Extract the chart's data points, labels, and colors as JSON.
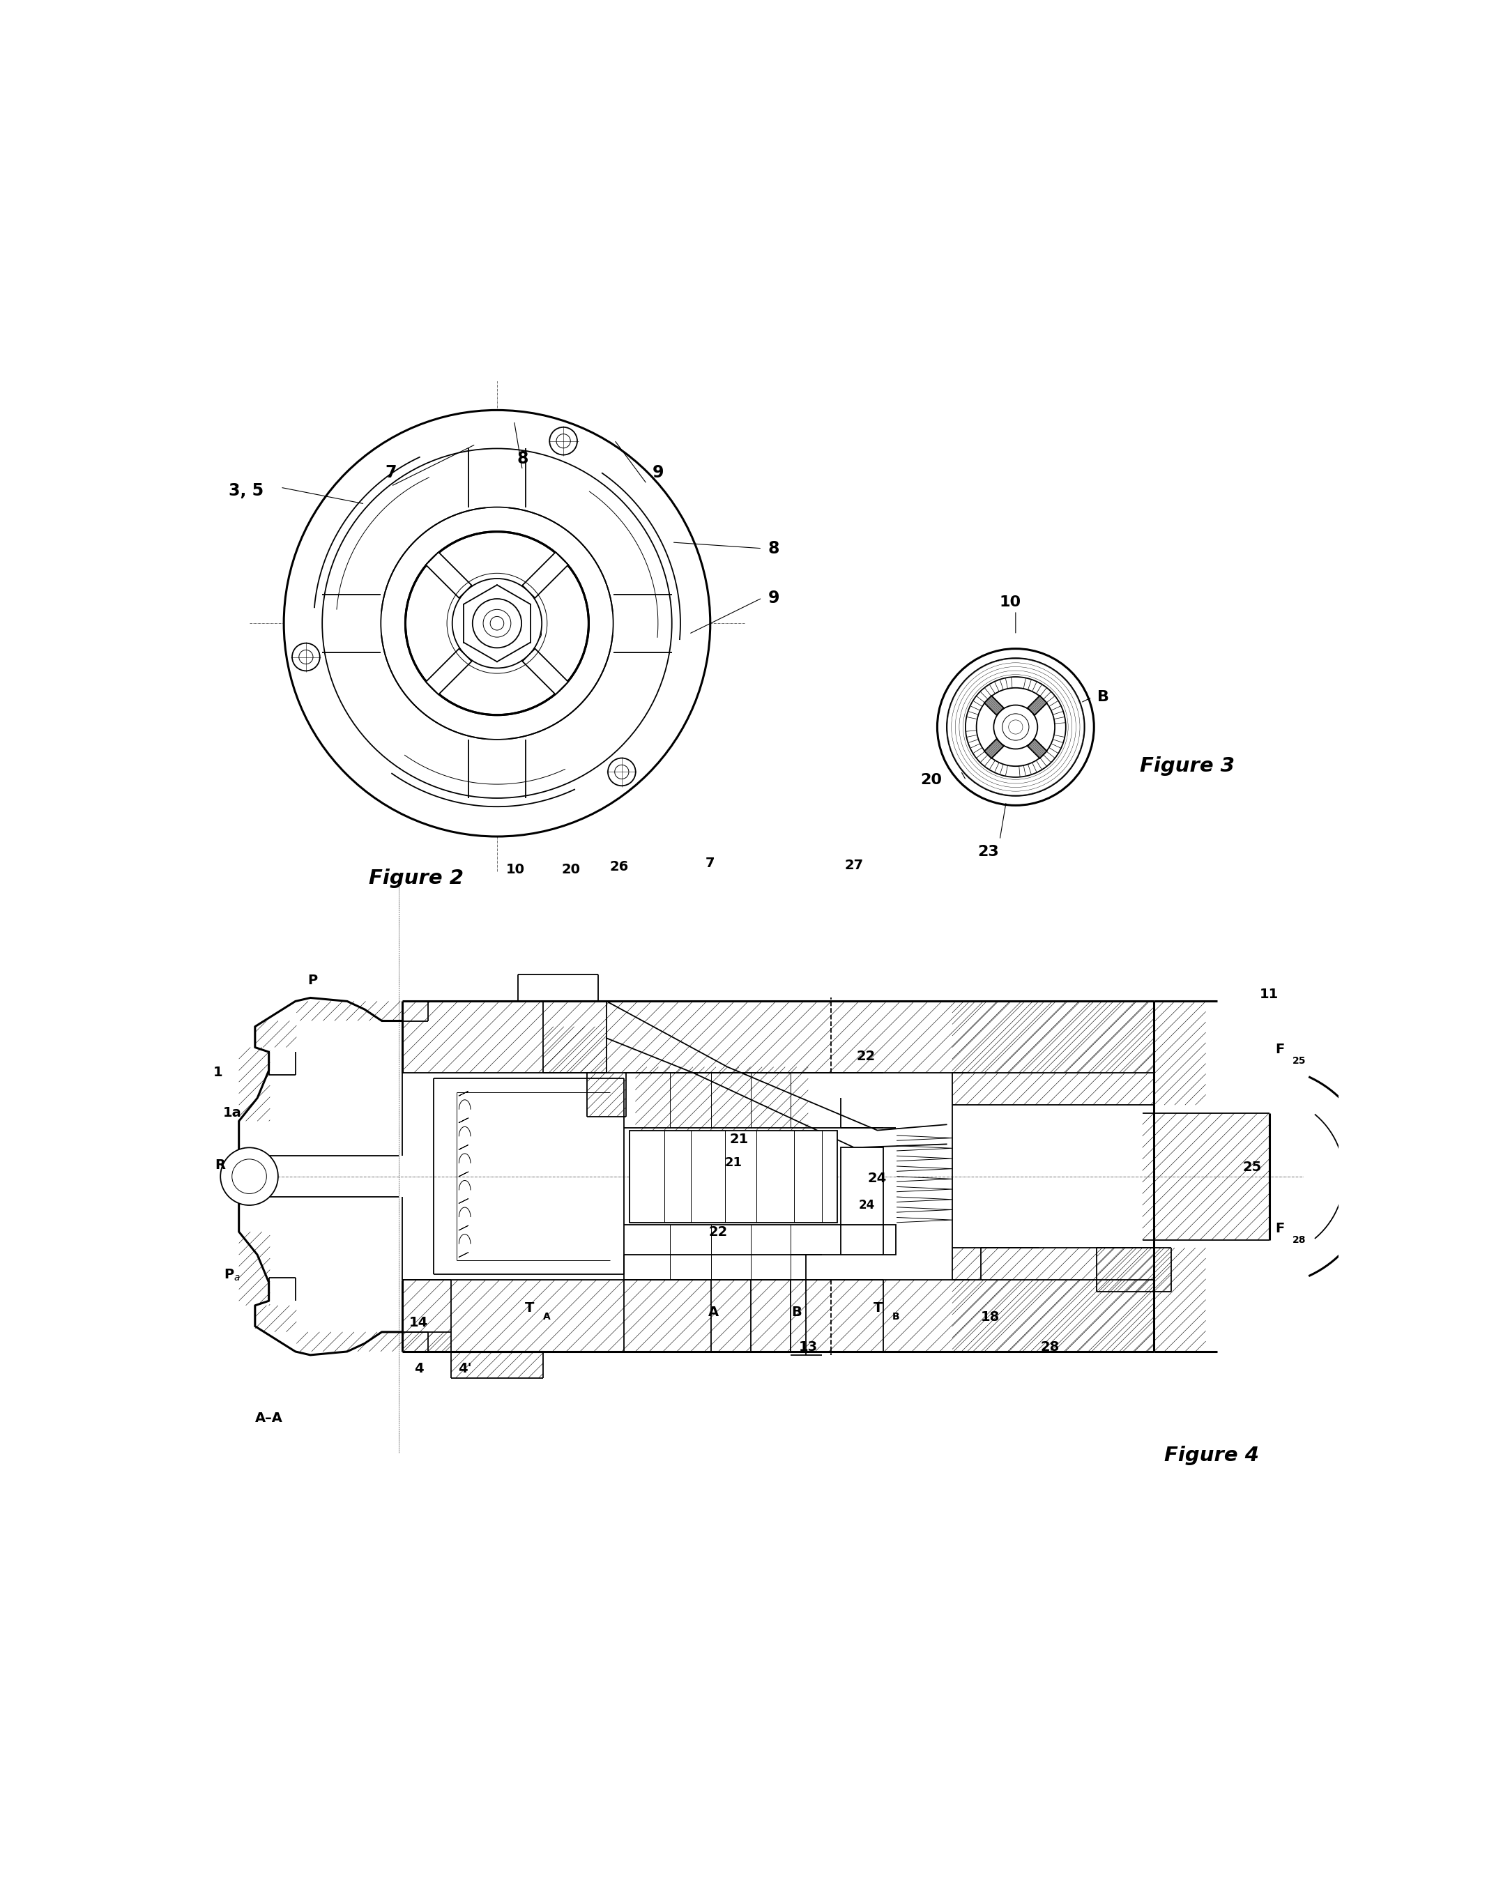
{
  "background_color": "#ffffff",
  "line_color": "#000000",
  "figure2_label": "Figure 2",
  "figure3_label": "Figure 3",
  "figure4_label": "Figure 4",
  "f2cx": 0.27,
  "f2cy": 0.79,
  "f2r": 0.185,
  "f3cx": 0.72,
  "f3cy": 0.7,
  "f3r": 0.068,
  "f4cy": 0.31,
  "f4top": 0.56,
  "f4bot": 0.06,
  "lw_thick": 2.2,
  "lw_main": 1.3,
  "lw_thin": 0.7,
  "lw_hair": 0.4
}
